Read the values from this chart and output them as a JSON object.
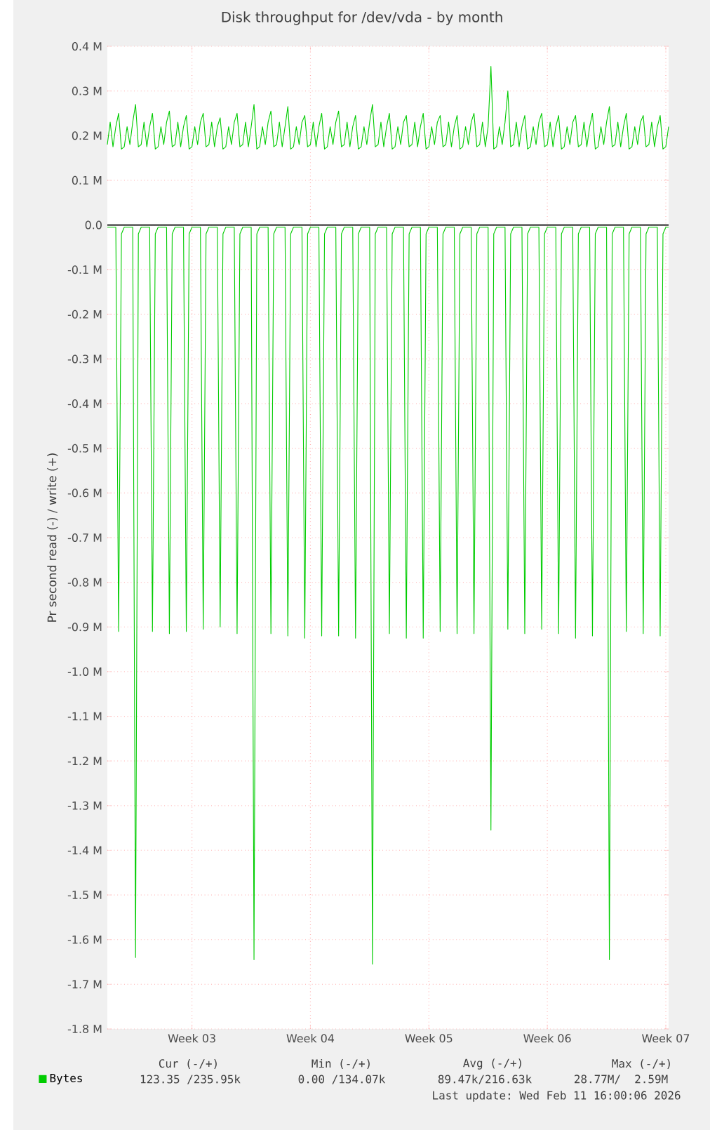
{
  "chart_data": {
    "type": "line",
    "title": "Disk throughput for /dev/vda - by month",
    "ylabel": "Pr second read (-) / write (+)",
    "categories": [
      null,
      null,
      null,
      null,
      null,
      null,
      null,
      null,
      null,
      null,
      null,
      null,
      null,
      null,
      null,
      null,
      null,
      null,
      null,
      null,
      null,
      null,
      null,
      null,
      null,
      null,
      null,
      null,
      null,
      null,
      "Week 03",
      null,
      null,
      null,
      null,
      null,
      null,
      null,
      null,
      null,
      null,
      null,
      null,
      null,
      null,
      null,
      null,
      null,
      null,
      null,
      null,
      null,
      null,
      null,
      null,
      null,
      null,
      null,
      null,
      null,
      null,
      null,
      null,
      null,
      null,
      null,
      null,
      null,
      null,
      null,
      null,
      null,
      "Week 04",
      null,
      null,
      null,
      null,
      null,
      null,
      null,
      null,
      null,
      null,
      null,
      null,
      null,
      null,
      null,
      null,
      null,
      null,
      null,
      null,
      null,
      null,
      null,
      null,
      null,
      null,
      null,
      null,
      null,
      null,
      null,
      null,
      null,
      null,
      null,
      null,
      null,
      null,
      null,
      null,
      null,
      "Week 05",
      null,
      null,
      null,
      null,
      null,
      null,
      null,
      null,
      null,
      null,
      null,
      null,
      null,
      null,
      null,
      null,
      null,
      null,
      null,
      null,
      null,
      null,
      null,
      null,
      null,
      null,
      null,
      null,
      null,
      null,
      null,
      null,
      null,
      null,
      null,
      null,
      null,
      null,
      null,
      null,
      null,
      "Week 06",
      null,
      null,
      null,
      null,
      null,
      null,
      null,
      null,
      null,
      null,
      null,
      null,
      null,
      null,
      null,
      null,
      null,
      null,
      null,
      null,
      null,
      null,
      null,
      null,
      null,
      null,
      null,
      null,
      null,
      null,
      null,
      null,
      null,
      null,
      null,
      null,
      null,
      null,
      null,
      null,
      null,
      "Week 07",
      null
    ],
    "ylim": [
      -1.8,
      0.4
    ],
    "yticks": [
      {
        "value": -1.8,
        "label": "-1.8 M"
      },
      {
        "value": -1.7,
        "label": "-1.7 M"
      },
      {
        "value": -1.6,
        "label": "-1.6 M"
      },
      {
        "value": -1.5,
        "label": "-1.5 M"
      },
      {
        "value": -1.4,
        "label": "-1.4 M"
      },
      {
        "value": -1.3,
        "label": "-1.3 M"
      },
      {
        "value": -1.2,
        "label": "-1.2 M"
      },
      {
        "value": -1.1,
        "label": "-1.1 M"
      },
      {
        "value": -1.0,
        "label": "-1.0 M"
      },
      {
        "value": -0.9,
        "label": "-0.9 M"
      },
      {
        "value": -0.8,
        "label": "-0.8 M"
      },
      {
        "value": -0.7,
        "label": "-0.7 M"
      },
      {
        "value": -0.6,
        "label": "-0.6 M"
      },
      {
        "value": -0.5,
        "label": "-0.5 M"
      },
      {
        "value": -0.4,
        "label": "-0.4 M"
      },
      {
        "value": -0.3,
        "label": "-0.3 M"
      },
      {
        "value": -0.2,
        "label": "-0.2 M"
      },
      {
        "value": -0.1,
        "label": "-0.1 M"
      },
      {
        "value": 0.0,
        "label": "0.0"
      },
      {
        "value": 0.1,
        "label": "0.1 M"
      },
      {
        "value": 0.2,
        "label": "0.2 M"
      },
      {
        "value": 0.3,
        "label": "0.3 M"
      },
      {
        "value": 0.4,
        "label": "0.4 M"
      }
    ],
    "grid": true,
    "legend": "bottom left",
    "marker": "none",
    "line_style": "solid",
    "ref_lines": [
      {
        "axis": "y",
        "value": 0,
        "color": "#000000"
      }
    ],
    "series": [
      {
        "name": "Bytes",
        "color": "#00cc00",
        "values": [
          0.18,
          0.23,
          0.175,
          0.22,
          0.25,
          0.17,
          0.175,
          0.22,
          0.18,
          0.23,
          0.27,
          0.175,
          0.18,
          0.23,
          0.175,
          0.22,
          0.25,
          0.17,
          0.175,
          0.22,
          0.18,
          0.23,
          0.255,
          0.175,
          0.18,
          0.23,
          0.175,
          0.22,
          0.245,
          0.17,
          0.175,
          0.22,
          0.18,
          0.23,
          0.25,
          0.175,
          0.18,
          0.23,
          0.175,
          0.22,
          0.24,
          0.17,
          0.175,
          0.22,
          0.18,
          0.23,
          0.25,
          0.175,
          0.18,
          0.23,
          0.175,
          0.22,
          0.27,
          0.17,
          0.175,
          0.22,
          0.18,
          0.23,
          0.255,
          0.175,
          0.18,
          0.23,
          0.175,
          0.22,
          0.265,
          0.17,
          0.175,
          0.22,
          0.18,
          0.23,
          0.245,
          0.175,
          0.18,
          0.23,
          0.175,
          0.22,
          0.25,
          0.17,
          0.175,
          0.22,
          0.18,
          0.23,
          0.255,
          0.175,
          0.18,
          0.23,
          0.175,
          0.22,
          0.245,
          0.17,
          0.175,
          0.22,
          0.18,
          0.23,
          0.27,
          0.175,
          0.18,
          0.23,
          0.175,
          0.22,
          0.25,
          0.17,
          0.175,
          0.22,
          0.18,
          0.23,
          0.245,
          0.175,
          0.18,
          0.23,
          0.175,
          0.22,
          0.25,
          0.17,
          0.175,
          0.22,
          0.18,
          0.23,
          0.245,
          0.175,
          0.18,
          0.23,
          0.175,
          0.22,
          0.245,
          0.17,
          0.175,
          0.22,
          0.18,
          0.23,
          0.25,
          0.175,
          0.18,
          0.23,
          0.175,
          0.22,
          0.355,
          0.17,
          0.175,
          0.22,
          0.18,
          0.23,
          0.3,
          0.175,
          0.18,
          0.23,
          0.175,
          0.22,
          0.245,
          0.17,
          0.175,
          0.22,
          0.18,
          0.23,
          0.25,
          0.175,
          0.18,
          0.23,
          0.175,
          0.22,
          0.245,
          0.17,
          0.175,
          0.22,
          0.18,
          0.23,
          0.245,
          0.175,
          0.18,
          0.23,
          0.175,
          0.22,
          0.25,
          0.17,
          0.175,
          0.22,
          0.18,
          0.23,
          0.265,
          0.175,
          0.18,
          0.23,
          0.175,
          0.22,
          0.25,
          0.17,
          0.175,
          0.22,
          0.18,
          0.23,
          0.245,
          0.175,
          0.18,
          0.23,
          0.175,
          0.22,
          0.245,
          0.17,
          0.175,
          0.22
        ]
      },
      {
        "color": "#00cc00",
        "values": [
          -0.005,
          -0.005,
          -0.005,
          -0.005,
          -0.91,
          -0.02,
          -0.005,
          -0.005,
          -0.005,
          -0.005,
          -1.64,
          -0.02,
          -0.005,
          -0.005,
          -0.005,
          -0.005,
          -0.91,
          -0.02,
          -0.005,
          -0.005,
          -0.005,
          -0.005,
          -0.915,
          -0.02,
          -0.005,
          -0.005,
          -0.005,
          -0.005,
          -0.91,
          -0.02,
          -0.005,
          -0.005,
          -0.005,
          -0.005,
          -0.905,
          -0.02,
          -0.005,
          -0.005,
          -0.005,
          -0.005,
          -0.9,
          -0.02,
          -0.005,
          -0.005,
          -0.005,
          -0.005,
          -0.915,
          -0.02,
          -0.005,
          -0.005,
          -0.005,
          -0.005,
          -1.645,
          -0.02,
          -0.005,
          -0.005,
          -0.005,
          -0.005,
          -0.915,
          -0.02,
          -0.005,
          -0.005,
          -0.005,
          -0.005,
          -0.92,
          -0.02,
          -0.005,
          -0.005,
          -0.005,
          -0.005,
          -0.925,
          -0.02,
          -0.005,
          -0.005,
          -0.005,
          -0.005,
          -0.92,
          -0.02,
          -0.005,
          -0.005,
          -0.005,
          -0.005,
          -0.92,
          -0.02,
          -0.005,
          -0.005,
          -0.005,
          -0.005,
          -0.925,
          -0.02,
          -0.005,
          -0.005,
          -0.005,
          -0.005,
          -1.655,
          -0.02,
          -0.005,
          -0.005,
          -0.005,
          -0.005,
          -0.915,
          -0.02,
          -0.005,
          -0.005,
          -0.005,
          -0.005,
          -0.925,
          -0.02,
          -0.005,
          -0.005,
          -0.005,
          -0.005,
          -0.925,
          -0.02,
          -0.005,
          -0.005,
          -0.005,
          -0.005,
          -0.91,
          -0.02,
          -0.005,
          -0.005,
          -0.005,
          -0.005,
          -0.915,
          -0.02,
          -0.005,
          -0.005,
          -0.005,
          -0.005,
          -0.915,
          -0.02,
          -0.005,
          -0.005,
          -0.005,
          -0.005,
          -1.355,
          -0.02,
          -0.005,
          -0.005,
          -0.005,
          -0.005,
          -0.905,
          -0.02,
          -0.005,
          -0.005,
          -0.005,
          -0.005,
          -0.915,
          -0.02,
          -0.005,
          -0.005,
          -0.005,
          -0.005,
          -0.905,
          -0.02,
          -0.005,
          -0.005,
          -0.005,
          -0.005,
          -0.915,
          -0.02,
          -0.005,
          -0.005,
          -0.005,
          -0.005,
          -0.925,
          -0.02,
          -0.005,
          -0.005,
          -0.005,
          -0.005,
          -0.92,
          -0.02,
          -0.005,
          -0.005,
          -0.005,
          -0.005,
          -1.645,
          -0.02,
          -0.005,
          -0.005,
          -0.005,
          -0.005,
          -0.91,
          -0.02,
          -0.005,
          -0.005,
          -0.005,
          -0.005,
          -0.915,
          -0.02,
          -0.005,
          -0.005,
          -0.005,
          -0.005,
          -0.92,
          -0.02,
          -0.005,
          -0.005
        ]
      }
    ],
    "annotations": [
      "Cur (-/+)",
      "Min (-/+)",
      "Avg (-/+)",
      "Max (-/+)",
      "123.35 /235.95k",
      "0.00 /134.07k",
      "89.47k/216.63k",
      "28.77M/  2.59M",
      "Last update: Wed Feb 11 16:00:06 2026"
    ]
  }
}
